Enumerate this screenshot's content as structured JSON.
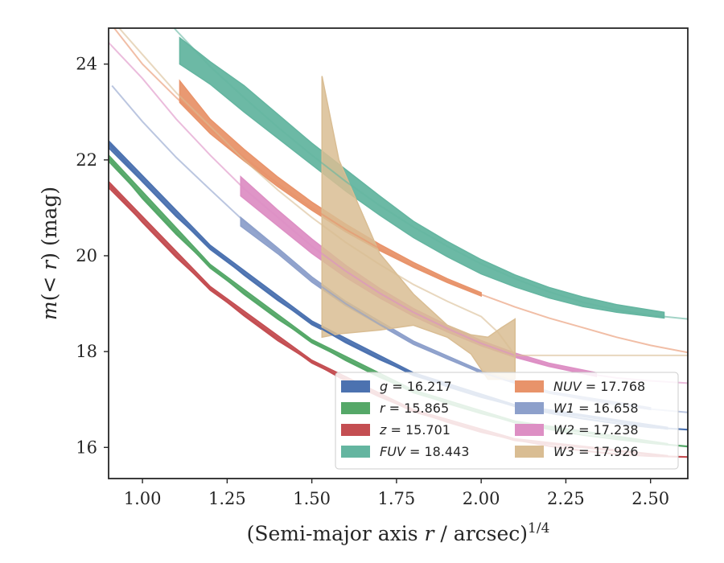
{
  "chart_data": {
    "type": "line",
    "xlabel": "(Semi-major axis r / arcsec)^1/4",
    "ylabel": "m(< r) (mag)",
    "xlim": [
      0.9,
      2.61
    ],
    "ylim": [
      24.75,
      15.35
    ],
    "y_inverted": true,
    "grid": false,
    "legend_position": "lower-right",
    "x_ticks": [
      "1.00",
      "1.25",
      "1.50",
      "1.75",
      "2.00",
      "2.25",
      "2.50"
    ],
    "y_ticks": [
      "16",
      "18",
      "20",
      "22",
      "24"
    ],
    "series": [
      {
        "name": "g = 16.217",
        "legend_label": "g = 16.217",
        "color": "#4c72b0",
        "model": [
          [
            0.9,
            22.35
          ],
          [
            1.0,
            21.55
          ],
          [
            1.1,
            20.82
          ],
          [
            1.2,
            20.18
          ],
          [
            1.3,
            19.6
          ],
          [
            1.4,
            19.07
          ],
          [
            1.5,
            18.6
          ],
          [
            1.6,
            18.19
          ],
          [
            1.7,
            17.84
          ],
          [
            1.8,
            17.53
          ],
          [
            1.9,
            17.27
          ],
          [
            2.0,
            17.05
          ],
          [
            2.1,
            16.87
          ],
          [
            2.2,
            16.72
          ],
          [
            2.3,
            16.6
          ],
          [
            2.4,
            16.5
          ],
          [
            2.5,
            16.42
          ],
          [
            2.61,
            16.37
          ]
        ],
        "band": [
          [
            0.9,
            22.25,
            22.4
          ],
          [
            1.2,
            20.13,
            20.22
          ],
          [
            1.5,
            18.56,
            18.64
          ],
          [
            1.8,
            17.5,
            17.56
          ],
          [
            2.1,
            16.85,
            16.89
          ],
          [
            2.55,
            16.38,
            16.42
          ]
        ]
      },
      {
        "name": "r = 15.865",
        "legend_label": "r = 15.865",
        "color": "#55a868",
        "model": [
          [
            0.9,
            22.05
          ],
          [
            1.0,
            21.2
          ],
          [
            1.1,
            20.45
          ],
          [
            1.2,
            19.78
          ],
          [
            1.3,
            19.2
          ],
          [
            1.4,
            18.68
          ],
          [
            1.5,
            18.22
          ],
          [
            1.6,
            17.82
          ],
          [
            1.7,
            17.47
          ],
          [
            1.8,
            17.17
          ],
          [
            1.9,
            16.92
          ],
          [
            2.0,
            16.71
          ],
          [
            2.1,
            16.53
          ],
          [
            2.2,
            16.38
          ],
          [
            2.3,
            16.26
          ],
          [
            2.4,
            16.17
          ],
          [
            2.5,
            16.09
          ],
          [
            2.61,
            16.02
          ]
        ],
        "band": [
          [
            0.9,
            21.97,
            22.1
          ],
          [
            1.2,
            19.74,
            19.82
          ],
          [
            1.5,
            18.18,
            18.25
          ],
          [
            1.8,
            17.14,
            17.2
          ],
          [
            2.1,
            16.51,
            16.55
          ],
          [
            2.55,
            16.05,
            16.08
          ]
        ]
      },
      {
        "name": "z = 15.701",
        "legend_label": "z = 15.701",
        "color": "#c44e52",
        "model": [
          [
            0.9,
            21.5
          ],
          [
            1.0,
            20.7
          ],
          [
            1.1,
            19.97
          ],
          [
            1.2,
            19.32
          ],
          [
            1.3,
            18.75
          ],
          [
            1.4,
            18.23
          ],
          [
            1.5,
            17.79
          ],
          [
            1.6,
            17.39
          ],
          [
            1.7,
            17.06
          ],
          [
            1.8,
            16.77
          ],
          [
            1.9,
            16.53
          ],
          [
            2.0,
            16.32
          ],
          [
            2.1,
            16.16
          ],
          [
            2.2,
            16.03
          ],
          [
            2.3,
            15.93
          ],
          [
            2.4,
            15.86
          ],
          [
            2.5,
            15.82
          ],
          [
            2.61,
            15.8
          ]
        ],
        "band": [
          [
            0.9,
            21.42,
            21.55
          ],
          [
            1.2,
            19.28,
            19.36
          ],
          [
            1.5,
            17.76,
            17.82
          ],
          [
            1.8,
            16.74,
            16.79
          ],
          [
            2.1,
            16.14,
            16.18
          ],
          [
            2.55,
            15.81,
            15.83
          ]
        ]
      },
      {
        "name": "FUV = 18.443",
        "legend_label": "FUV = 18.443",
        "color": "#64b5a0",
        "model": [
          [
            0.96,
            25.8
          ],
          [
            1.0,
            25.55
          ],
          [
            1.1,
            24.7
          ],
          [
            1.2,
            23.95
          ],
          [
            1.3,
            23.3
          ],
          [
            1.4,
            22.68
          ],
          [
            1.5,
            22.1
          ],
          [
            1.6,
            21.55
          ],
          [
            1.7,
            21.05
          ],
          [
            1.8,
            20.6
          ],
          [
            1.9,
            20.2
          ],
          [
            2.0,
            19.83
          ],
          [
            2.1,
            19.52
          ],
          [
            2.2,
            19.25
          ],
          [
            2.3,
            19.03
          ],
          [
            2.4,
            18.87
          ],
          [
            2.5,
            18.76
          ],
          [
            2.61,
            18.68
          ]
        ],
        "band": [
          [
            1.11,
            24.0,
            24.55
          ],
          [
            1.2,
            23.58,
            24.05
          ],
          [
            1.3,
            23.0,
            23.55
          ],
          [
            1.4,
            22.45,
            22.95
          ],
          [
            1.5,
            21.9,
            22.35
          ],
          [
            1.6,
            21.35,
            21.8
          ],
          [
            1.7,
            20.85,
            21.25
          ],
          [
            1.8,
            20.38,
            20.72
          ],
          [
            1.9,
            19.98,
            20.3
          ],
          [
            2.0,
            19.62,
            19.92
          ],
          [
            2.1,
            19.35,
            19.6
          ],
          [
            2.2,
            19.12,
            19.34
          ],
          [
            2.3,
            18.94,
            19.14
          ],
          [
            2.4,
            18.82,
            18.98
          ],
          [
            2.54,
            18.7,
            18.82
          ]
        ]
      },
      {
        "name": "NUV = 17.768",
        "legend_label": "NUV = 17.768",
        "color": "#e8936a",
        "model": [
          [
            0.9,
            24.9
          ],
          [
            1.0,
            24.0
          ],
          [
            1.1,
            23.3
          ],
          [
            1.2,
            22.65
          ],
          [
            1.3,
            22.05
          ],
          [
            1.4,
            21.5
          ],
          [
            1.5,
            21.0
          ],
          [
            1.6,
            20.55
          ],
          [
            1.7,
            20.15
          ],
          [
            1.8,
            19.79
          ],
          [
            1.9,
            19.47
          ],
          [
            2.0,
            19.19
          ],
          [
            2.1,
            18.93
          ],
          [
            2.2,
            18.7
          ],
          [
            2.3,
            18.5
          ],
          [
            2.4,
            18.3
          ],
          [
            2.5,
            18.13
          ],
          [
            2.61,
            17.98
          ]
        ],
        "band": [
          [
            1.11,
            23.2,
            23.65
          ],
          [
            1.2,
            22.55,
            22.85
          ],
          [
            1.3,
            21.98,
            22.22
          ],
          [
            1.4,
            21.44,
            21.64
          ],
          [
            1.5,
            20.95,
            21.12
          ],
          [
            1.6,
            20.5,
            20.66
          ],
          [
            1.7,
            20.11,
            20.24
          ],
          [
            1.8,
            19.76,
            19.86
          ],
          [
            1.9,
            19.44,
            19.52
          ],
          [
            2.0,
            19.16,
            19.23
          ]
        ]
      },
      {
        "name": "W1 = 16.658",
        "legend_label": "W1 = 16.658",
        "color": "#8da0cb",
        "model": [
          [
            0.91,
            23.55
          ],
          [
            1.0,
            22.8
          ],
          [
            1.1,
            22.05
          ],
          [
            1.2,
            21.38
          ],
          [
            1.3,
            20.72
          ],
          [
            1.4,
            20.1
          ],
          [
            1.5,
            19.5
          ],
          [
            1.6,
            19.0
          ],
          [
            1.7,
            18.57
          ],
          [
            1.8,
            18.18
          ],
          [
            1.9,
            17.85
          ],
          [
            2.0,
            17.57
          ],
          [
            2.1,
            17.34
          ],
          [
            2.2,
            17.15
          ],
          [
            2.3,
            17.0
          ],
          [
            2.4,
            16.88
          ],
          [
            2.5,
            16.8
          ],
          [
            2.61,
            16.73
          ]
        ],
        "band": [
          [
            1.29,
            20.62,
            20.8
          ],
          [
            1.4,
            20.04,
            20.16
          ],
          [
            1.5,
            19.45,
            19.56
          ],
          [
            1.6,
            18.96,
            19.05
          ],
          [
            1.8,
            18.15,
            18.22
          ],
          [
            2.0,
            17.55,
            17.6
          ],
          [
            2.2,
            17.13,
            17.17
          ],
          [
            2.5,
            16.79,
            16.83
          ]
        ]
      },
      {
        "name": "W2 = 17.238",
        "legend_label": "W2 = 17.238",
        "color": "#dd8fc4",
        "model": [
          [
            0.9,
            24.45
          ],
          [
            1.0,
            23.7
          ],
          [
            1.1,
            22.85
          ],
          [
            1.2,
            22.1
          ],
          [
            1.3,
            21.4
          ],
          [
            1.4,
            20.8
          ],
          [
            1.5,
            20.2
          ],
          [
            1.6,
            19.68
          ],
          [
            1.7,
            19.22
          ],
          [
            1.8,
            18.82
          ],
          [
            1.9,
            18.48
          ],
          [
            2.0,
            18.17
          ],
          [
            2.1,
            17.92
          ],
          [
            2.2,
            17.71
          ],
          [
            2.3,
            17.55
          ],
          [
            2.4,
            17.45
          ],
          [
            2.5,
            17.39
          ],
          [
            2.61,
            17.34
          ]
        ],
        "band": [
          [
            1.29,
            21.25,
            21.65
          ],
          [
            1.4,
            20.62,
            20.95
          ],
          [
            1.5,
            20.05,
            20.35
          ],
          [
            1.6,
            19.55,
            19.8
          ],
          [
            1.7,
            19.12,
            19.32
          ],
          [
            1.8,
            18.74,
            18.9
          ],
          [
            1.9,
            18.41,
            18.55
          ],
          [
            2.0,
            18.12,
            18.23
          ],
          [
            2.1,
            17.88,
            17.97
          ],
          [
            2.2,
            17.69,
            17.76
          ],
          [
            2.34,
            17.48,
            17.56
          ]
        ]
      },
      {
        "name": "W3 = 17.926",
        "legend_label": "W3 = 17.926",
        "color": "#d9bd93",
        "model": [
          [
            0.9,
            25.0
          ],
          [
            1.0,
            24.2
          ],
          [
            1.1,
            23.4
          ],
          [
            1.2,
            22.7
          ],
          [
            1.3,
            22.0
          ],
          [
            1.4,
            21.37
          ],
          [
            1.5,
            20.8
          ],
          [
            1.6,
            20.28
          ],
          [
            1.7,
            19.82
          ],
          [
            1.8,
            19.4
          ],
          [
            1.9,
            19.05
          ],
          [
            2.0,
            18.73
          ],
          [
            2.05,
            18.4
          ],
          [
            2.1,
            17.92
          ],
          [
            2.3,
            17.92
          ],
          [
            2.61,
            17.92
          ]
        ],
        "band": [
          [
            1.53,
            18.3,
            23.75
          ],
          [
            1.58,
            18.37,
            22.0
          ],
          [
            1.7,
            18.45,
            20.05
          ],
          [
            1.8,
            18.55,
            19.2
          ],
          [
            1.9,
            18.3,
            18.55
          ],
          [
            1.97,
            17.95,
            18.35
          ],
          [
            2.02,
            17.42,
            18.3
          ],
          [
            2.06,
            17.42,
            18.5
          ],
          [
            2.1,
            17.42,
            18.68
          ]
        ]
      }
    ]
  }
}
